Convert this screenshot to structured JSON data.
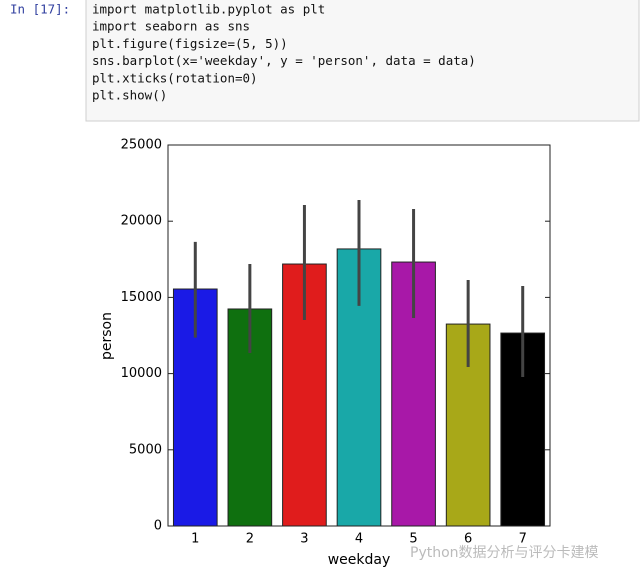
{
  "cell": {
    "prompt": "In [17]:",
    "code": [
      "import matplotlib.pyplot as plt",
      "import seaborn as sns",
      "plt.figure(figsize=(5, 5))",
      "sns.barplot(x='weekday', y = 'person', data = data)",
      "plt.xticks(rotation=0)",
      "plt.show()"
    ]
  },
  "chart_data": {
    "type": "bar",
    "xlabel": "weekday",
    "ylabel": "person",
    "categories": [
      "1",
      "2",
      "3",
      "4",
      "5",
      "6",
      "7"
    ],
    "values": [
      15550,
      14240,
      17190,
      18180,
      17320,
      13250,
      12660
    ],
    "ci_low": [
      12360,
      11350,
      13520,
      14440,
      13650,
      10430,
      9780
    ],
    "ci_high": [
      18640,
      17190,
      21060,
      21390,
      20800,
      16140,
      15750
    ],
    "colors": [
      "#1a1ae6",
      "#0f700f",
      "#e01c1c",
      "#19a8a8",
      "#a818a8",
      "#a8a818",
      "#000000"
    ],
    "ylim": [
      0,
      25000
    ],
    "yticks": [
      0,
      5000,
      10000,
      15000,
      20000,
      25000
    ],
    "grid": false
  },
  "watermark": "Python数据分析与评分卡建模"
}
